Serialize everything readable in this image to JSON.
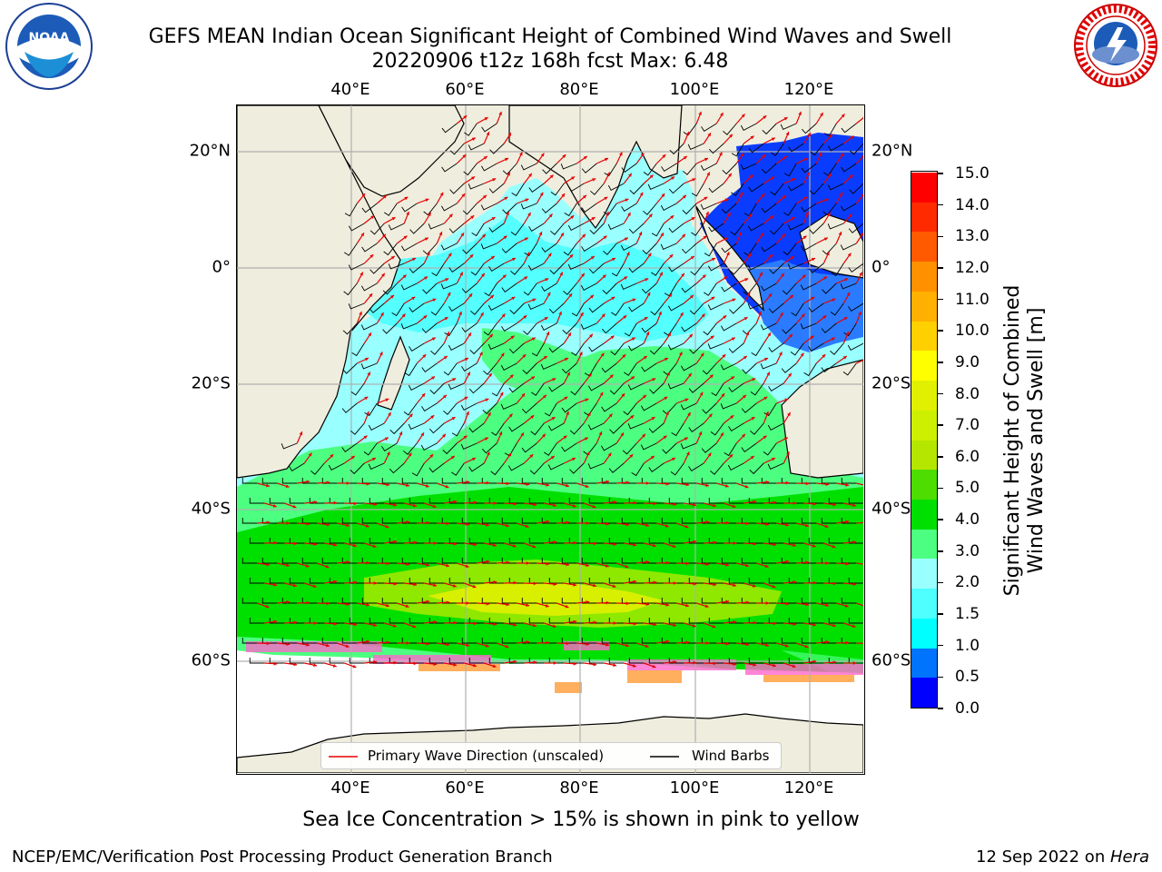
{
  "header": {
    "title_line1": "GEFS MEAN Indian Ocean Significant Height of Combined Wind Waves and Swell",
    "title_line2": "20220906 t12z 168h fcst   Max: 6.48"
  },
  "logos": {
    "left": "noaa-logo",
    "right": "nws-logo"
  },
  "map": {
    "lon_labels": [
      "40°E",
      "60°E",
      "80°E",
      "100°E",
      "120°E"
    ],
    "lat_labels": [
      "20°N",
      "0°",
      "20°S",
      "40°S",
      "60°S"
    ],
    "colors": {
      "land": "#efeddd",
      "grid": "#b0b0b0",
      "coast": "#000000",
      "wave_arrow": "#e60000",
      "barb": "#000000"
    }
  },
  "legend": {
    "wave_label": "Primary Wave Direction (unscaled)",
    "barb_label": "Wind Barbs"
  },
  "colorbar": {
    "title_line1": "Significant Height of Combined",
    "title_line2": "Wind Waves and Swell [m]",
    "tick_labels": [
      "0.0",
      "0.5",
      "1.0",
      "1.5",
      "2.0",
      "3.0",
      "4.0",
      "5.0",
      "6.0",
      "7.0",
      "8.0",
      "9.0",
      "10.0",
      "11.0",
      "12.0",
      "13.0",
      "14.0",
      "15.0"
    ],
    "colors": [
      "#0000ff",
      "#0073ff",
      "#00ffff",
      "#4dffff",
      "#99ffff",
      "#4dff80",
      "#00e000",
      "#4ddd00",
      "#b5e600",
      "#ccf000",
      "#e0f000",
      "#ffff00",
      "#ffd000",
      "#ffb000",
      "#ff9000",
      "#ff5a00",
      "#ff2a00",
      "#ff0000"
    ]
  },
  "footer": {
    "ice_note": "Sea Ice Concentration > 15% is shown in pink to yellow",
    "credit_left": "NCEP/EMC/Verification Post Processing Product Generation Branch",
    "credit_right_prefix": "12 Sep 2022 on ",
    "credit_right_machine": "Hera"
  }
}
